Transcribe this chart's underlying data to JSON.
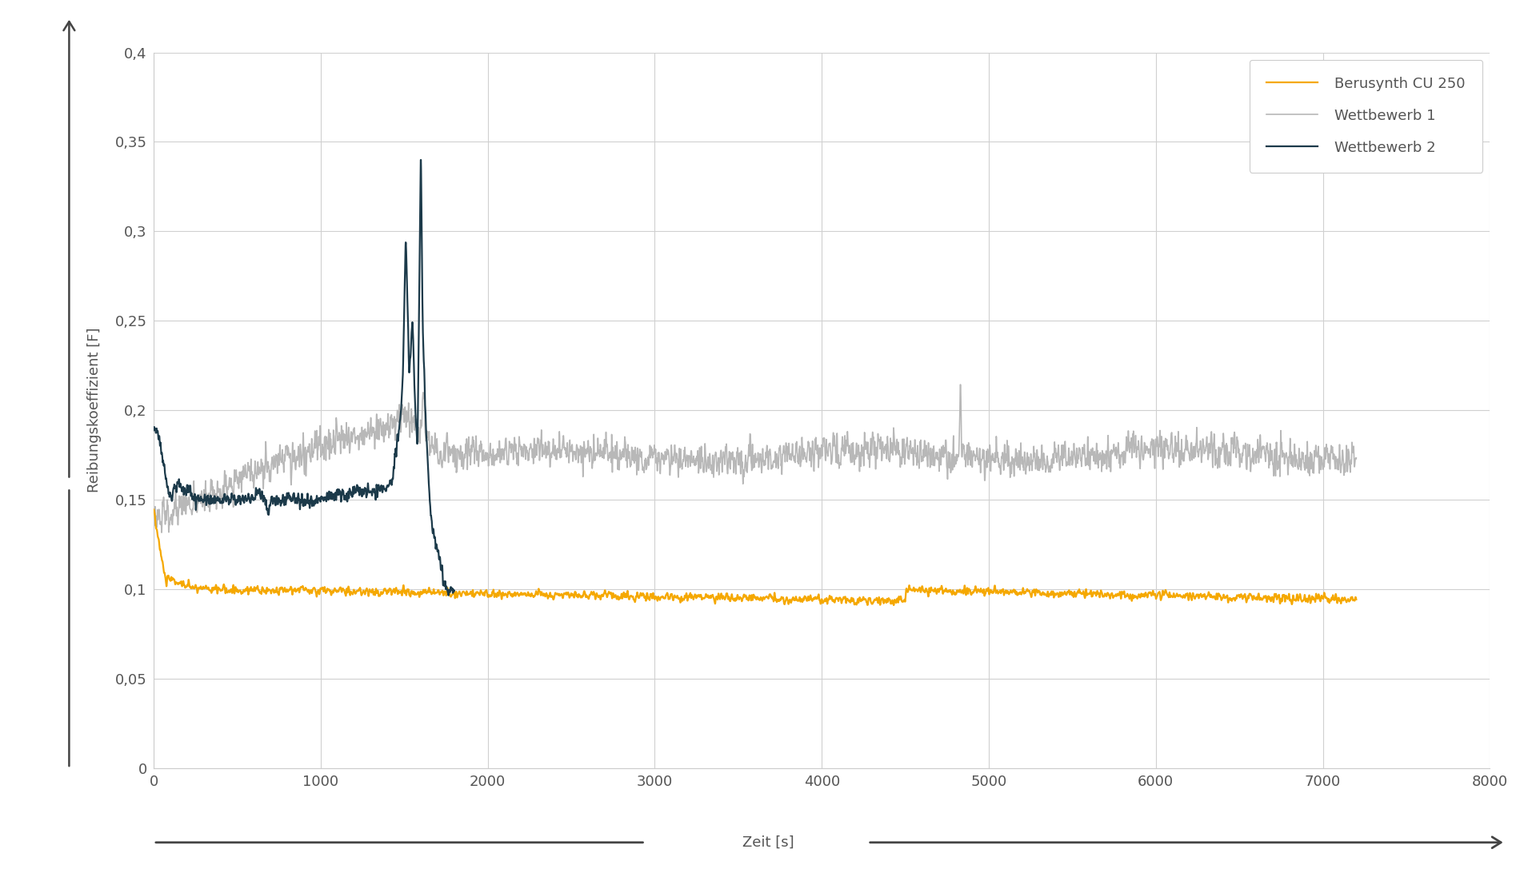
{
  "title": "",
  "ylabel": "Reibungskoeffizient [F]",
  "xlabel": "Zeit [s]",
  "xlim": [
    0,
    8000
  ],
  "ylim": [
    0,
    0.4
  ],
  "xticks": [
    0,
    1000,
    2000,
    3000,
    4000,
    5000,
    6000,
    7000,
    8000
  ],
  "yticks": [
    0,
    0.05,
    0.1,
    0.15,
    0.2,
    0.25,
    0.3,
    0.35,
    0.4
  ],
  "ytick_labels": [
    "0",
    "0,05",
    "0,1",
    "0,15",
    "0,2",
    "0,25",
    "0,3",
    "0,35",
    "0,4"
  ],
  "color_berusynth": "#f5a800",
  "color_wettbewerb1": "#b8b8b8",
  "color_wettbewerb2": "#1c3a4a",
  "legend_labels": [
    "Berusynth CU 250",
    "Wettbewerb 1",
    "Wettbewerb 2"
  ],
  "background_color": "#ffffff",
  "plot_bg_color": "#ffffff",
  "grid_color": "#d0d0d0",
  "linewidth": 1.2,
  "figsize": [
    19.2,
    10.92
  ],
  "dpi": 100,
  "tick_color": "#555555",
  "tick_fontsize": 13,
  "ylabel_fontsize": 13,
  "legend_fontsize": 13,
  "arrow_color": "#444444"
}
